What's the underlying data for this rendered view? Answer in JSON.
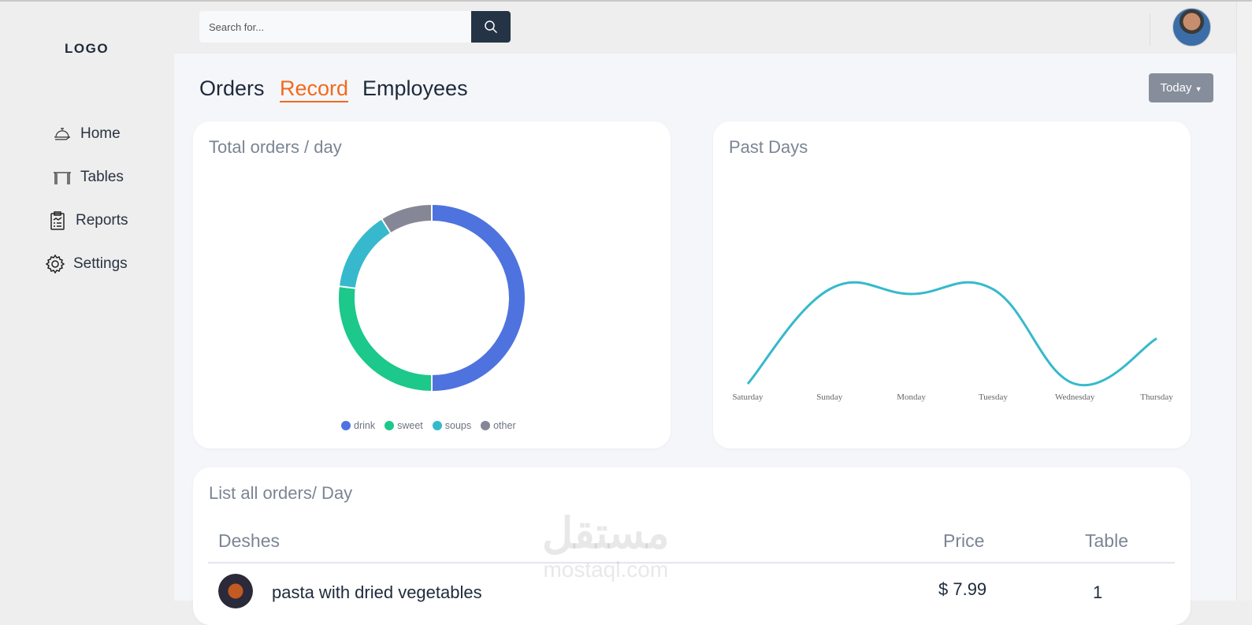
{
  "sidebar": {
    "logo": "LOGO",
    "items": [
      {
        "label": "Home",
        "icon": "cloche-icon"
      },
      {
        "label": "Tables",
        "icon": "table-icon"
      },
      {
        "label": "Reports",
        "icon": "clipboard-icon"
      },
      {
        "label": "Settings",
        "icon": "gear-icon"
      }
    ]
  },
  "topbar": {
    "search_placeholder": "Search for..."
  },
  "tabs": [
    {
      "label": "Orders"
    },
    {
      "label": "Record",
      "active": true
    },
    {
      "label": "Employees"
    }
  ],
  "period_select": "Today",
  "chart_data": [
    {
      "type": "pie",
      "title": "Total orders / day",
      "donut": true,
      "categories": [
        "drink",
        "sweet",
        "soups",
        "other"
      ],
      "values": [
        50,
        27,
        14,
        9
      ],
      "colors": [
        "#4e73df",
        "#1cc88a",
        "#36b9cc",
        "#858796"
      ],
      "legend": "bottom"
    },
    {
      "type": "line",
      "title": "Past Days",
      "categories": [
        "Saturday",
        "Sunday",
        "Monday",
        "Tuesday",
        "Wednesday",
        "Thursday"
      ],
      "values": [
        0,
        100,
        95,
        100,
        0,
        48
      ],
      "ylim": [
        0,
        100
      ],
      "color": "#36b9cc",
      "grid": false
    }
  ],
  "orders_list": {
    "title": "List all orders/ Day",
    "headers": [
      "Deshes",
      "Price",
      "Table"
    ],
    "rows": [
      {
        "dish": "pasta with dried vegetables",
        "price": "$ 7.99",
        "table": "1"
      }
    ]
  },
  "watermark": {
    "arabic": "مستقل",
    "latin": "mostaql.com"
  }
}
